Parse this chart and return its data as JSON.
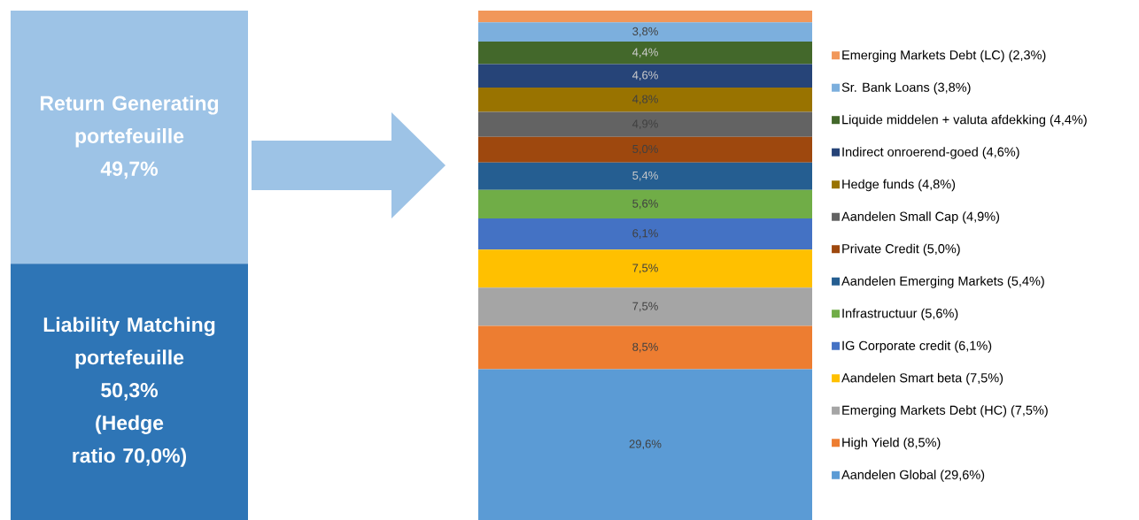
{
  "chart_data": [
    {
      "type": "bar",
      "stacked": true,
      "categories": [
        null
      ],
      "ylim": [
        0,
        100
      ],
      "tick_labels": false,
      "legend": false,
      "series": [
        {
          "name": "Liability Matching portefeuille",
          "color": "#2e75b6",
          "values": [
            50.3
          ],
          "value_labels": [
            "50,3%"
          ]
        },
        {
          "name": "Return Generating portefeuille",
          "color": "#9dc3e6",
          "values": [
            49.7
          ],
          "value_labels": [
            "49,7%"
          ]
        }
      ],
      "annotations": [
        "(Hedge ratio 70,0%)"
      ]
    },
    {
      "type": "bar",
      "stacked": true,
      "categories": [
        null
      ],
      "ylim": [
        0,
        100
      ],
      "tick_labels": false,
      "legend": "right",
      "series": [
        {
          "name": "Aandelen Global (29,6%)",
          "color": "#5b9bd5",
          "values": [
            29.6
          ],
          "value_labels": [
            "29,6%"
          ]
        },
        {
          "name": "High Yield (8,5%)",
          "color": "#ed7d31",
          "values": [
            8.5
          ],
          "value_labels": [
            "8,5%"
          ]
        },
        {
          "name": "Emerging Markets Debt (HC) (7,5%)",
          "color": "#a5a5a5",
          "values": [
            7.5
          ],
          "value_labels": [
            "7,5%"
          ]
        },
        {
          "name": "Aandelen Smart beta (7,5%)",
          "color": "#ffc000",
          "values": [
            7.5
          ],
          "value_labels": [
            "7,5%"
          ]
        },
        {
          "name": "IG Corporate credit (6,1%)",
          "color": "#4472c4",
          "values": [
            6.1
          ],
          "value_labels": [
            "6,1%"
          ]
        },
        {
          "name": "Infrastructuur (5,6%)",
          "color": "#70ad47",
          "values": [
            5.6
          ],
          "value_labels": [
            "5,6%"
          ]
        },
        {
          "name": "Aandelen Emerging Markets (5,4%)",
          "color": "#255e91",
          "values": [
            5.4
          ],
          "value_labels": [
            "5,4%"
          ]
        },
        {
          "name": "Private Credit (5,0%)",
          "color": "#9e480e",
          "values": [
            5.0
          ],
          "value_labels": [
            "5,0%"
          ]
        },
        {
          "name": "Aandelen Small Cap (4,9%)",
          "color": "#636363",
          "values": [
            4.9
          ],
          "value_labels": [
            "4,9%"
          ]
        },
        {
          "name": "Hedge funds (4,8%)",
          "color": "#997300",
          "values": [
            4.8
          ],
          "value_labels": [
            "4,8%"
          ]
        },
        {
          "name": "Indirect onroerend-goed (4,6%)",
          "color": "#264478",
          "values": [
            4.6
          ],
          "value_labels": [
            "4,6%"
          ]
        },
        {
          "name": "Liquide middelen + valuta afdekking (4,4%)",
          "color": "#43682b",
          "values": [
            4.4
          ],
          "value_labels": [
            "4,4%"
          ]
        },
        {
          "name": "Sr. Bank Loans (3,8%)",
          "color": "#7cafdd",
          "values": [
            3.8
          ],
          "value_labels": [
            "3,8%"
          ]
        },
        {
          "name": "Emerging Markets Debt (LC) (2,3%)",
          "color": "#f1975a",
          "values": [
            2.3
          ],
          "value_labels": [
            null
          ]
        }
      ]
    }
  ]
}
